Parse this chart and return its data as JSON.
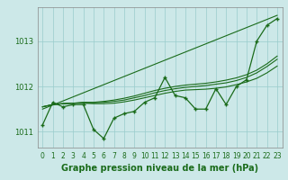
{
  "xlabel": "Graphe pression niveau de la mer (hPa)",
  "hours": [
    0,
    1,
    2,
    3,
    4,
    5,
    6,
    7,
    8,
    9,
    10,
    11,
    12,
    13,
    14,
    15,
    16,
    17,
    18,
    19,
    20,
    21,
    22,
    23
  ],
  "line_main": [
    1011.15,
    1011.65,
    1011.55,
    1011.6,
    1011.6,
    1011.05,
    1010.85,
    1011.3,
    1011.4,
    1011.45,
    1011.65,
    1011.75,
    1012.2,
    1011.8,
    1011.75,
    1011.5,
    1011.5,
    1011.95,
    1011.6,
    1012.0,
    1012.15,
    1013.0,
    1013.35,
    1013.5
  ],
  "line_straight": [
    1011.5,
    1011.59,
    1011.68,
    1011.77,
    1011.86,
    1011.95,
    1012.04,
    1012.13,
    1012.22,
    1012.31,
    1012.4,
    1012.49,
    1012.58,
    1012.67,
    1012.76,
    1012.85,
    1012.94,
    1013.03,
    1013.12,
    1013.21,
    1013.3,
    1013.39,
    1013.48,
    1013.57
  ],
  "line_avg1": [
    1011.55,
    1011.6,
    1011.62,
    1011.63,
    1011.63,
    1011.62,
    1011.62,
    1011.63,
    1011.66,
    1011.7,
    1011.75,
    1011.8,
    1011.85,
    1011.89,
    1011.92,
    1011.93,
    1011.94,
    1011.96,
    1011.99,
    1012.04,
    1012.1,
    1012.18,
    1012.3,
    1012.45
  ],
  "line_avg2": [
    1011.55,
    1011.6,
    1011.62,
    1011.63,
    1011.64,
    1011.64,
    1011.65,
    1011.67,
    1011.7,
    1011.75,
    1011.8,
    1011.86,
    1011.91,
    1011.95,
    1011.98,
    1012.0,
    1012.02,
    1012.05,
    1012.08,
    1012.13,
    1012.2,
    1012.3,
    1012.44,
    1012.6
  ],
  "line_avg3": [
    1011.55,
    1011.6,
    1011.62,
    1011.63,
    1011.65,
    1011.65,
    1011.67,
    1011.7,
    1011.74,
    1011.79,
    1011.85,
    1011.91,
    1011.96,
    1012.0,
    1012.03,
    1012.05,
    1012.07,
    1012.1,
    1012.14,
    1012.19,
    1012.26,
    1012.36,
    1012.5,
    1012.67
  ],
  "ylim": [
    1010.65,
    1013.75
  ],
  "yticks": [
    1011,
    1012,
    1013
  ],
  "line_color": "#1a6b1a",
  "bg_color": "#cce8e8",
  "grid_color": "#99cccc",
  "tick_label_color": "#1a6b1a",
  "xlabel_color": "#1a6b1a",
  "axis_label_fontsize": 7.0,
  "tick_fontsize": 6.0
}
